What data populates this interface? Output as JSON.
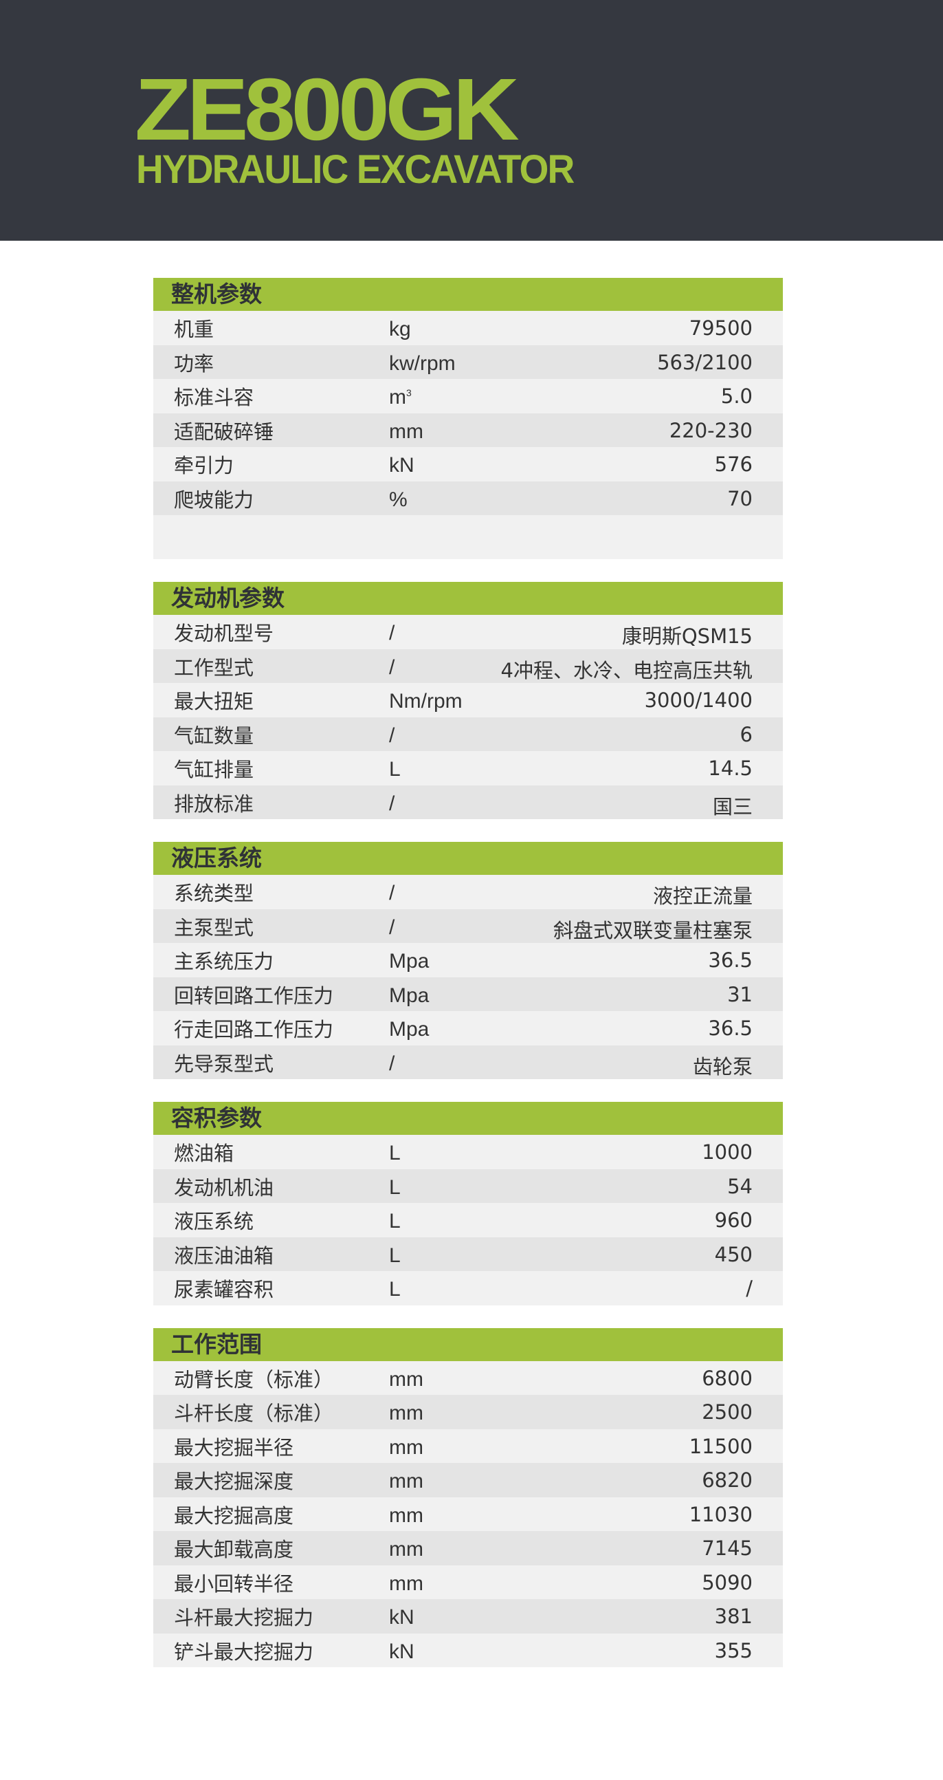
{
  "header": {
    "model": "ZE800GK",
    "subtitle": "HYDRAULIC EXCAVATOR"
  },
  "colors": {
    "accent": "#a0c13c",
    "header_bg": "#353840"
  },
  "sections": [
    {
      "title": "整机参数",
      "trailing_blank_row": true,
      "rows": [
        {
          "label": "机重",
          "unit": "kg",
          "value": "79500"
        },
        {
          "label": "功率",
          "unit": "kw/rpm",
          "value": "563/2100"
        },
        {
          "label": "标准斗容",
          "unit": "m",
          "unit_sup": "3",
          "value": "5.0"
        },
        {
          "label": "适配破碎锤",
          "unit": "mm",
          "value": "220-230"
        },
        {
          "label": "牵引力",
          "unit": "kN",
          "value": "576"
        },
        {
          "label": "爬坡能力",
          "unit": "%",
          "value": "70"
        }
      ]
    },
    {
      "title": "发动机参数",
      "rows": [
        {
          "label": "发动机型号",
          "unit": "/",
          "value": "康明斯QSM15"
        },
        {
          "label": "工作型式",
          "unit": "/",
          "value": "4冲程、水冷、电控高压共轨"
        },
        {
          "label": "最大扭矩",
          "unit": "Nm/rpm",
          "value": "3000/1400"
        },
        {
          "label": "气缸数量",
          "unit": "/",
          "value": "6"
        },
        {
          "label": "气缸排量",
          "unit": "L",
          "value": "14.5"
        },
        {
          "label": "排放标准",
          "unit": "/",
          "value": "国三"
        }
      ]
    },
    {
      "title": "液压系统",
      "rows": [
        {
          "label": "系统类型",
          "unit": "/",
          "value": "液控正流量"
        },
        {
          "label": "主泵型式",
          "unit": "/",
          "value": "斜盘式双联变量柱塞泵"
        },
        {
          "label": "主系统压力",
          "unit": "Mpa",
          "value": "36.5"
        },
        {
          "label": "回转回路工作压力",
          "unit": "Mpa",
          "value": "31"
        },
        {
          "label": "行走回路工作压力",
          "unit": "Mpa",
          "value": "36.5"
        },
        {
          "label": "先导泵型式",
          "unit": "/",
          "value": "齿轮泵"
        }
      ]
    },
    {
      "title": "容积参数",
      "rows": [
        {
          "label": "燃油箱",
          "unit": "L",
          "value": "1000"
        },
        {
          "label": "发动机机油",
          "unit": "L",
          "value": "54"
        },
        {
          "label": "液压系统",
          "unit": "L",
          "value": "960"
        },
        {
          "label": "液压油油箱",
          "unit": "L",
          "value": "450"
        },
        {
          "label": "尿素罐容积",
          "unit": "L",
          "value": "/"
        }
      ]
    },
    {
      "title": "工作范围",
      "rows": [
        {
          "label": "动臂长度（标准）",
          "unit": "mm",
          "value": "6800"
        },
        {
          "label": "斗杆长度（标准）",
          "unit": "mm",
          "value": "2500"
        },
        {
          "label": "最大挖掘半径",
          "unit": "mm",
          "value": "11500"
        },
        {
          "label": "最大挖掘深度",
          "unit": "mm",
          "value": "6820"
        },
        {
          "label": "最大挖掘高度",
          "unit": "mm",
          "value": "11030"
        },
        {
          "label": "最大卸载高度",
          "unit": "mm",
          "value": "7145"
        },
        {
          "label": "最小回转半径",
          "unit": "mm",
          "value": "5090"
        },
        {
          "label": "斗杆最大挖掘力",
          "unit": "kN",
          "value": "381"
        },
        {
          "label": "铲斗最大挖掘力",
          "unit": "kN",
          "value": "355"
        }
      ]
    }
  ]
}
